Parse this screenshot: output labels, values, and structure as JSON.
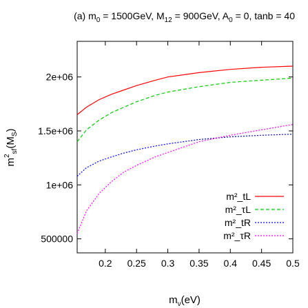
{
  "chart_data": {
    "type": "line",
    "title": "(a)  m_0 = 1500GeV, M_12 = 900GeV, A_0 = 0, tanb = 40",
    "xlabel": "m_ν(eV)",
    "ylabel": "m²_sf(M_S)",
    "xlim": [
      0.155,
      0.5
    ],
    "ylim": [
      370000,
      2330000
    ],
    "x_ticks": [
      0.2,
      0.25,
      0.3,
      0.35,
      0.4,
      0.45,
      0.5
    ],
    "x_tick_labels": [
      "0.2",
      "0.25",
      "0.3",
      "0.35",
      "0.4",
      "0.45",
      "0.5"
    ],
    "y_ticks": [
      500000,
      1000000,
      1500000,
      2000000
    ],
    "y_tick_labels": [
      "500000",
      "1e+06",
      "1.5e+06",
      "2e+06"
    ],
    "grid": false,
    "legend_position": "bottom-right",
    "series": [
      {
        "name": "m²_tL",
        "color": "#ff0000",
        "dash": "solid",
        "x": [
          0.155,
          0.17,
          0.19,
          0.21,
          0.23,
          0.25,
          0.28,
          0.3,
          0.35,
          0.4,
          0.45,
          0.5
        ],
        "y": [
          1650000,
          1720000,
          1790000,
          1840000,
          1880000,
          1920000,
          1970000,
          2000000,
          2040000,
          2070000,
          2090000,
          2100000
        ]
      },
      {
        "name": "m²_τL",
        "color": "#00cc00",
        "dash": "dashed",
        "x": [
          0.155,
          0.17,
          0.19,
          0.21,
          0.23,
          0.25,
          0.28,
          0.3,
          0.35,
          0.4,
          0.45,
          0.5
        ],
        "y": [
          1400000,
          1510000,
          1600000,
          1670000,
          1720000,
          1770000,
          1830000,
          1860000,
          1910000,
          1950000,
          1970000,
          1990000
        ]
      },
      {
        "name": "m²_tR",
        "color": "#0000ff",
        "dash": "dotted",
        "x": [
          0.155,
          0.17,
          0.19,
          0.21,
          0.23,
          0.25,
          0.28,
          0.3,
          0.35,
          0.4,
          0.45,
          0.5
        ],
        "y": [
          1080000,
          1160000,
          1220000,
          1260000,
          1295000,
          1325000,
          1360000,
          1380000,
          1420000,
          1445000,
          1460000,
          1470000
        ]
      },
      {
        "name": "m²_τR",
        "color": "#ff00ff",
        "dash": "dotted",
        "x": [
          0.155,
          0.17,
          0.19,
          0.21,
          0.23,
          0.25,
          0.28,
          0.3,
          0.35,
          0.4,
          0.45,
          0.5
        ],
        "y": [
          550000,
          760000,
          920000,
          1030000,
          1120000,
          1180000,
          1260000,
          1300000,
          1400000,
          1460000,
          1510000,
          1560000
        ]
      }
    ]
  }
}
